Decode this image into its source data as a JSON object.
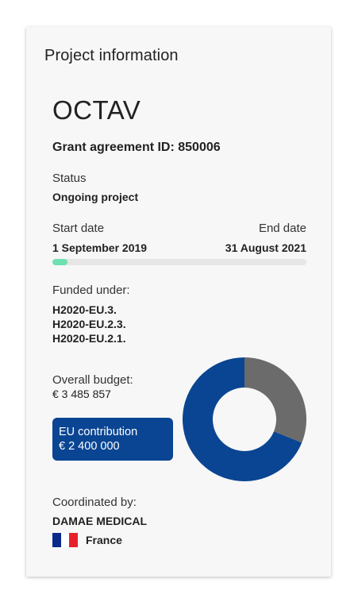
{
  "card": {
    "title": "Project information",
    "acronym": "OCTAV",
    "grant_id": "Grant agreement ID: 850006",
    "status_label": "Status",
    "status_value": "Ongoing project",
    "start_label": "Start date",
    "end_label": "End date",
    "start_value": "1 September 2019",
    "end_value": "31 August 2021",
    "progress_fraction": 0.06,
    "funded_label": "Funded under:",
    "funded_items": [
      "H2020-EU.3.",
      "H2020-EU.2.3.",
      "H2020-EU.2.1."
    ],
    "budget_label": "Overall budget:",
    "budget_value": "€ 3 485 857",
    "eu_contribution_label": "EU contribution",
    "eu_contribution_value": "€ 2 400 000",
    "coordinated_label": "Coordinated by:",
    "coordinator": "DAMAE MEDICAL",
    "country": "France"
  },
  "donut": {
    "total": 3485857,
    "eu": 2400000,
    "eu_color": "#0a4593",
    "rest_color": "#6b6b6b"
  },
  "colors": {
    "progress": "#6fe0b0",
    "flag": [
      "#0a2a8a",
      "#ffffff",
      "#e8202a"
    ]
  }
}
